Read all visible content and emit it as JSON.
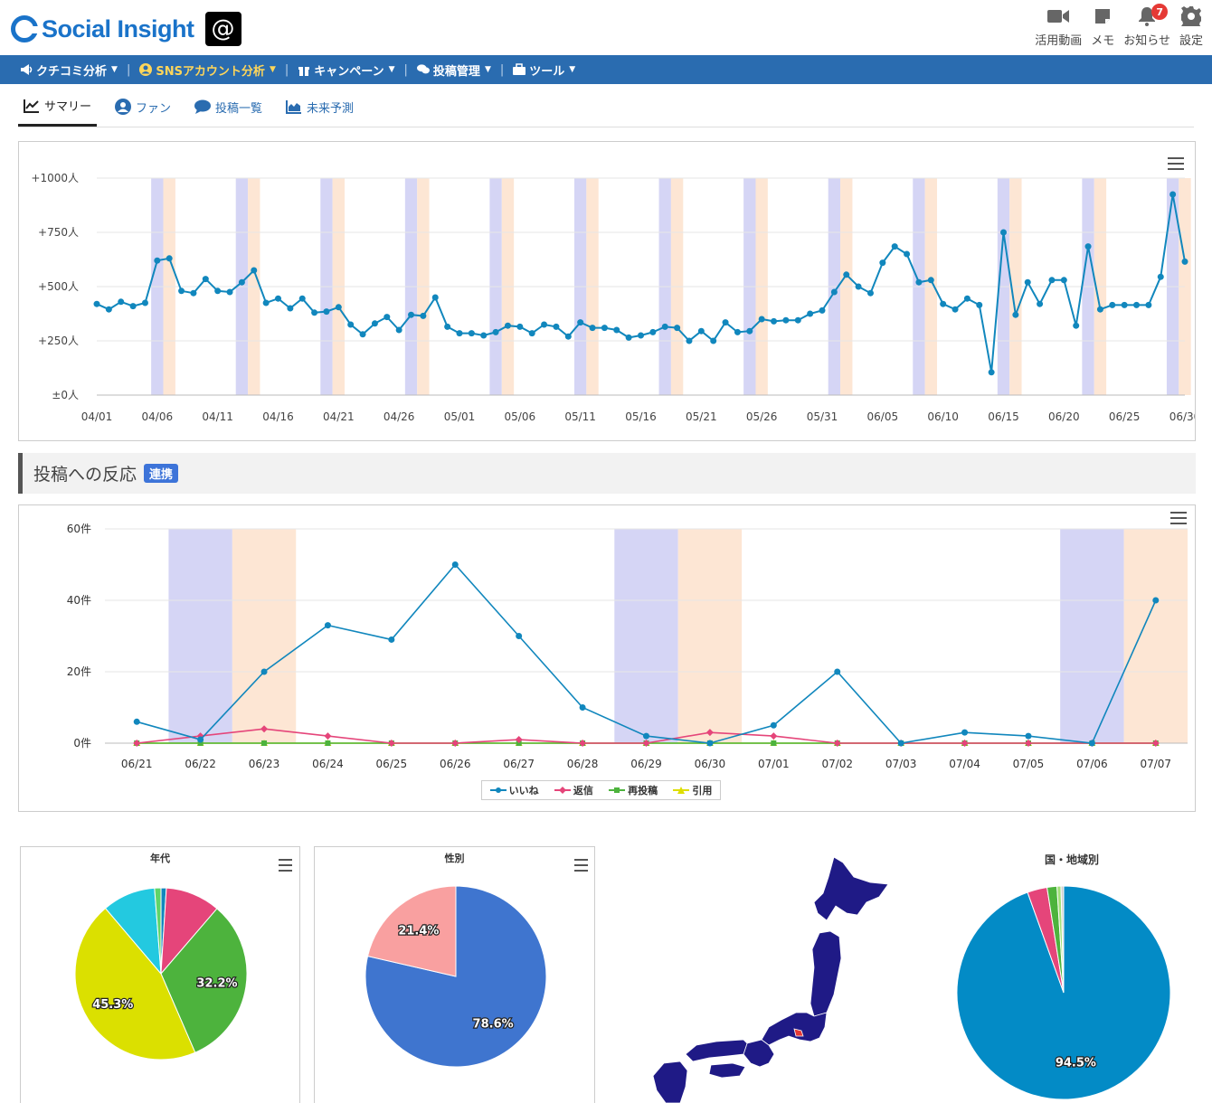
{
  "header": {
    "brand": "Social Insight",
    "tools": [
      {
        "label": "活用動画",
        "icon": "video-icon"
      },
      {
        "label": "メモ",
        "icon": "memo-icon"
      },
      {
        "label": "お知らせ",
        "icon": "bell-icon",
        "badge": "7"
      },
      {
        "label": "設定",
        "icon": "gear-icon"
      }
    ]
  },
  "nav": {
    "items": [
      {
        "label": "クチコミ分析",
        "icon": "megaphone-icon",
        "active": false
      },
      {
        "label": "SNSアカウント分析",
        "icon": "user-circle-icon",
        "active": true
      },
      {
        "label": "キャンペーン",
        "icon": "gift-icon",
        "active": false
      },
      {
        "label": "投稿管理",
        "icon": "comments-icon",
        "active": false
      },
      {
        "label": "ツール",
        "icon": "briefcase-icon",
        "active": false
      }
    ]
  },
  "tabs": [
    {
      "label": "サマリー",
      "icon": "line-chart-icon",
      "active": true
    },
    {
      "label": "ファン",
      "icon": "user-icon",
      "active": false
    },
    {
      "label": "投稿一覧",
      "icon": "comment-icon",
      "active": false
    },
    {
      "label": "未来予測",
      "icon": "area-chart-icon",
      "active": false
    }
  ],
  "section": {
    "title": "投稿への反応",
    "badge": "連携"
  },
  "colors": {
    "weekday_sat": "#d5d5f5",
    "weekday_sun": "#fde6d4",
    "line_blue": "#1187bd",
    "pink": "#e5457a",
    "green": "#4db33d",
    "yellow": "#dede00"
  },
  "chart_data": [
    {
      "type": "line",
      "title": "",
      "yticks": [
        "±0人",
        "+250人",
        "+500人",
        "+750人",
        "+1000人"
      ],
      "ylim": [
        0,
        1000
      ],
      "xtick_labels": [
        "04/01",
        "04/06",
        "04/11",
        "04/16",
        "04/21",
        "04/26",
        "05/01",
        "05/06",
        "05/11",
        "05/16",
        "05/21",
        "05/26",
        "05/31",
        "06/05",
        "06/10",
        "06/15",
        "06/20",
        "06/25",
        "06/30"
      ],
      "start_date": "04/01",
      "series": [
        {
          "values": [
            420,
            395,
            430,
            410,
            425,
            620,
            630,
            480,
            470,
            535,
            480,
            475,
            520,
            575,
            425,
            445,
            400,
            445,
            380,
            385,
            405,
            325,
            280,
            330,
            360,
            300,
            370,
            365,
            450,
            315,
            285,
            285,
            275,
            290,
            320,
            315,
            285,
            325,
            315,
            270,
            335,
            310,
            310,
            300,
            265,
            275,
            290,
            315,
            310,
            250,
            295,
            250,
            335,
            290,
            295,
            350,
            340,
            345,
            345,
            375,
            390,
            475,
            555,
            500,
            470,
            610,
            685,
            650,
            520,
            530,
            420,
            395,
            445,
            415,
            105,
            750,
            370,
            520,
            420,
            530,
            530,
            320,
            685,
            395,
            415,
            415,
            415,
            415,
            545,
            925,
            615
          ],
          "color": "#1187bd"
        }
      ],
      "saturday_indices": [
        5,
        12,
        19,
        26,
        33,
        40,
        47,
        54,
        61,
        68,
        75,
        82,
        89
      ],
      "sunday_indices": [
        6,
        13,
        20,
        27,
        34,
        41,
        48,
        55,
        62,
        69,
        76,
        83,
        90
      ]
    },
    {
      "type": "line",
      "title": "",
      "categories": [
        "06/21",
        "06/22",
        "06/23",
        "06/24",
        "06/25",
        "06/26",
        "06/27",
        "06/28",
        "06/29",
        "06/30",
        "07/01",
        "07/02",
        "07/03",
        "07/04",
        "07/05",
        "07/06",
        "07/07"
      ],
      "yticks": [
        "0件",
        "20件",
        "40件",
        "60件"
      ],
      "ylim": [
        0,
        60
      ],
      "saturday_indices": [
        1,
        8,
        15
      ],
      "sunday_indices": [
        2,
        9,
        16
      ],
      "series": [
        {
          "name": "いいね",
          "color": "#1187bd",
          "marker": "circle",
          "values": [
            6,
            1,
            20,
            33,
            29,
            50,
            30,
            10,
            2,
            0,
            5,
            20,
            0,
            3,
            2,
            0,
            40
          ]
        },
        {
          "name": "返信",
          "color": "#e5457a",
          "marker": "diamond",
          "values": [
            0,
            2,
            4,
            2,
            0,
            0,
            1,
            0,
            0,
            3,
            2,
            0,
            0,
            0,
            0,
            0,
            0
          ]
        },
        {
          "name": "再投稿",
          "color": "#4db33d",
          "marker": "square",
          "values": [
            0,
            0,
            0,
            0,
            0,
            0,
            0,
            0,
            0,
            0,
            0,
            0,
            0,
            0,
            0,
            0,
            0
          ]
        },
        {
          "name": "引用",
          "color": "#dede00",
          "marker": "triangle",
          "values": [
            0,
            0,
            0,
            0,
            0,
            0,
            0,
            0,
            0,
            0,
            0,
            0,
            0,
            0,
            0,
            0,
            0
          ]
        }
      ]
    },
    {
      "type": "pie",
      "title": "年代",
      "slices": [
        {
          "value": 1.0,
          "color": "#1187bd",
          "label": ""
        },
        {
          "value": 10.3,
          "color": "#e5457a",
          "label": ""
        },
        {
          "value": 32.2,
          "color": "#4db33d",
          "label": "32.2%"
        },
        {
          "value": 45.3,
          "color": "#dbe000",
          "label": "45.3%"
        },
        {
          "value": 10.0,
          "color": "#23c9e0",
          "label": ""
        },
        {
          "value": 1.2,
          "color": "#5fd46a",
          "label": ""
        }
      ]
    },
    {
      "type": "pie",
      "title": "性別",
      "slices": [
        {
          "value": 78.6,
          "color": "#3f75cf",
          "label": "78.6%"
        },
        {
          "value": 21.4,
          "color": "#f9a0a0",
          "label": "21.4%"
        }
      ]
    },
    {
      "type": "pie",
      "title": "国・地域別",
      "slices": [
        {
          "value": 94.5,
          "color": "#038bc6",
          "label": "94.5%"
        },
        {
          "value": 3.0,
          "color": "#e5457a",
          "label": ""
        },
        {
          "value": 1.5,
          "color": "#4db33d",
          "label": ""
        },
        {
          "value": 0.6,
          "color": "#a2e07a",
          "label": ""
        },
        {
          "value": 0.4,
          "color": "#cfcfcf",
          "label": ""
        }
      ]
    }
  ]
}
